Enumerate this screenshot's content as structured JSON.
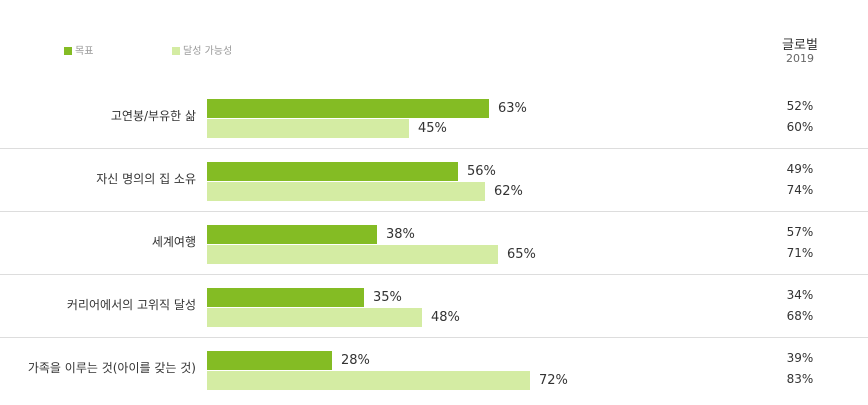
{
  "chart_data": {
    "type": "bar",
    "orientation": "horizontal",
    "categories": [
      "고연봉/부유한 삶",
      "자신 명의의 집 소유",
      "세계여행",
      "커리어에서의 고위직 달성",
      "가족을 이루는 것(아이를 갖는 것)"
    ],
    "series": [
      {
        "name": "목표",
        "color": "#84bc24",
        "values": [
          63,
          56,
          38,
          35,
          28
        ]
      },
      {
        "name": "달성 가능성",
        "color": "#d4eca3",
        "values": [
          45,
          62,
          65,
          48,
          72
        ]
      }
    ],
    "value_suffix": "%",
    "xlim": [
      0,
      100
    ],
    "global": {
      "title": "글로벌",
      "year": "2019",
      "goal": [
        "52%",
        "49%",
        "57%",
        "34%",
        "39%"
      ],
      "achievable": [
        "60%",
        "74%",
        "71%",
        "68%",
        "83%"
      ]
    }
  }
}
